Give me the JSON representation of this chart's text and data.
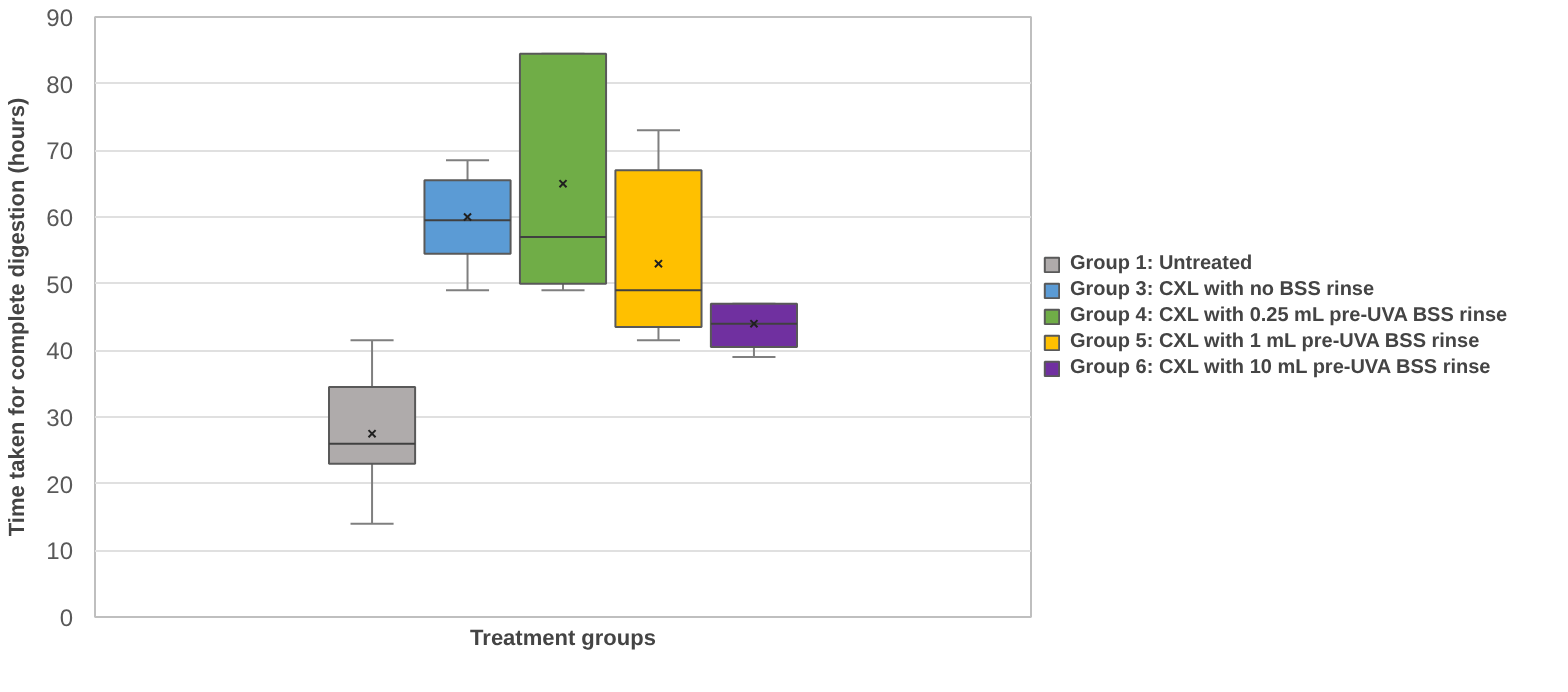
{
  "chart_data": {
    "type": "box",
    "xlabel": "Treatment groups",
    "ylabel": "Time taken for complete digestion (hours)",
    "categories": [
      null
    ],
    "ylim": [
      0,
      90
    ],
    "yticks": [
      0,
      10,
      20,
      30,
      40,
      50,
      60,
      70,
      80,
      90
    ],
    "grid": "y",
    "legend": "right",
    "series": [
      {
        "name": "Group 1: Untreated",
        "color": "#afabab",
        "boxes": [
          {
            "low": 14,
            "q1": 23,
            "median": 26,
            "q3": 34.5,
            "high": 41.5,
            "mean": 27.5
          }
        ]
      },
      {
        "name": "Group 3: CXL with no BSS rinse",
        "color": "#5b9bd5",
        "boxes": [
          {
            "low": 49,
            "q1": 54.5,
            "median": 59.5,
            "q3": 65.5,
            "high": 68.5,
            "mean": 60
          }
        ]
      },
      {
        "name": "Group 4: CXL with 0.25 mL pre-UVA BSS rinse",
        "color": "#70ad47",
        "boxes": [
          {
            "low": 49,
            "q1": 50,
            "median": 57,
            "q3": 84.5,
            "high": 84.5,
            "mean": 65
          }
        ]
      },
      {
        "name": "Group 5: CXL with 1 mL pre-UVA BSS rinse",
        "color": "#ffc000",
        "boxes": [
          {
            "low": 41.5,
            "q1": 43.5,
            "median": 49,
            "q3": 67,
            "high": 73,
            "mean": 53
          }
        ]
      },
      {
        "name": "Group 6: CXL with 10 mL pre-UVA BSS rinse",
        "color": "#7030a0",
        "boxes": [
          {
            "low": 39,
            "q1": 40.5,
            "median": 44,
            "q3": 47,
            "high": 47,
            "mean": 44
          }
        ]
      }
    ]
  }
}
